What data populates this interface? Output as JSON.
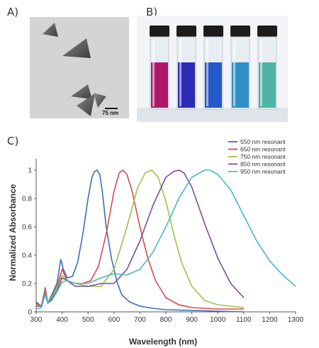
{
  "panels": {
    "a": {
      "label": "A)",
      "scale_bar": "75 nm"
    },
    "b": {
      "label": "B)",
      "vial_colors": [
        "#b0186a",
        "#2b2bb8",
        "#2558c8",
        "#2f8fc6",
        "#4fb4a4"
      ]
    },
    "c": {
      "label": "C)"
    }
  },
  "chart_data": {
    "type": "line",
    "xlabel": "Wavelength (nm)",
    "ylabel": "Normalized Absorbance",
    "xlim": [
      300,
      1300
    ],
    "ylim": [
      0,
      1.05
    ],
    "x_ticks": [
      300,
      400,
      500,
      600,
      700,
      800,
      900,
      1000,
      1100,
      1200,
      1300
    ],
    "y_ticks": [
      0,
      0.2,
      0.4,
      0.6,
      0.8,
      1
    ],
    "y_tick_labels": [
      "0",
      "0.2",
      "0.4",
      "0.6",
      "0.8",
      "1"
    ],
    "legend_position": "top-right",
    "grid": false,
    "series": [
      {
        "name": "550 nm resonant",
        "color": "#3a6fb8",
        "x": [
          300,
          320,
          335,
          345,
          360,
          380,
          395,
          405,
          420,
          440,
          460,
          480,
          500,
          515,
          525,
          535,
          545,
          555,
          570,
          590,
          610,
          630,
          660,
          700,
          750,
          800,
          900,
          1000,
          1100
        ],
        "y": [
          0.07,
          0.04,
          0.17,
          0.06,
          0.12,
          0.2,
          0.37,
          0.3,
          0.24,
          0.25,
          0.35,
          0.55,
          0.8,
          0.95,
          0.99,
          1.0,
          0.97,
          0.85,
          0.6,
          0.38,
          0.22,
          0.12,
          0.07,
          0.04,
          0.025,
          0.015,
          0.01,
          0.005,
          0.0
        ]
      },
      {
        "name": "650 nm resonant",
        "color": "#d94a4a",
        "x": [
          300,
          320,
          335,
          345,
          360,
          380,
          400,
          420,
          450,
          480,
          510,
          540,
          570,
          600,
          620,
          635,
          650,
          670,
          700,
          730,
          760,
          800,
          850,
          900,
          1000,
          1100
        ],
        "y": [
          0.06,
          0.04,
          0.16,
          0.06,
          0.1,
          0.18,
          0.3,
          0.22,
          0.2,
          0.2,
          0.22,
          0.32,
          0.55,
          0.85,
          0.98,
          1.0,
          0.97,
          0.85,
          0.6,
          0.38,
          0.22,
          0.1,
          0.05,
          0.03,
          0.02,
          0.02
        ]
      },
      {
        "name": "750 nm resonant",
        "color": "#9cc444",
        "x": [
          300,
          320,
          335,
          345,
          360,
          380,
          400,
          420,
          450,
          500,
          550,
          600,
          650,
          690,
          720,
          745,
          770,
          800,
          830,
          860,
          900,
          950,
          1000,
          1050,
          1100
        ],
        "y": [
          0.05,
          0.04,
          0.14,
          0.06,
          0.1,
          0.17,
          0.26,
          0.22,
          0.2,
          0.18,
          0.18,
          0.3,
          0.6,
          0.87,
          0.98,
          1.0,
          0.95,
          0.78,
          0.55,
          0.35,
          0.18,
          0.08,
          0.05,
          0.04,
          0.03
        ]
      },
      {
        "name": "850 nm resonant",
        "color": "#7a4ea0",
        "x": [
          300,
          320,
          335,
          345,
          360,
          380,
          400,
          420,
          450,
          500,
          550,
          600,
          650,
          700,
          750,
          800,
          830,
          850,
          870,
          900,
          950,
          1000,
          1050,
          1100
        ],
        "y": [
          0.04,
          0.04,
          0.13,
          0.06,
          0.09,
          0.15,
          0.24,
          0.22,
          0.18,
          0.18,
          0.2,
          0.2,
          0.3,
          0.5,
          0.75,
          0.95,
          0.99,
          1.0,
          0.98,
          0.88,
          0.62,
          0.38,
          0.2,
          0.1
        ]
      },
      {
        "name": "950 nm resonant",
        "color": "#4ab8c8",
        "x": [
          300,
          320,
          335,
          345,
          360,
          380,
          400,
          420,
          450,
          500,
          550,
          600,
          650,
          700,
          750,
          800,
          850,
          900,
          950,
          970,
          1000,
          1050,
          1100,
          1150,
          1200,
          1250,
          1300
        ],
        "y": [
          0.02,
          0.03,
          0.12,
          0.06,
          0.08,
          0.14,
          0.21,
          0.22,
          0.2,
          0.2,
          0.24,
          0.27,
          0.26,
          0.3,
          0.42,
          0.6,
          0.8,
          0.95,
          1.0,
          1.0,
          0.97,
          0.86,
          0.68,
          0.5,
          0.36,
          0.26,
          0.18
        ]
      }
    ]
  }
}
